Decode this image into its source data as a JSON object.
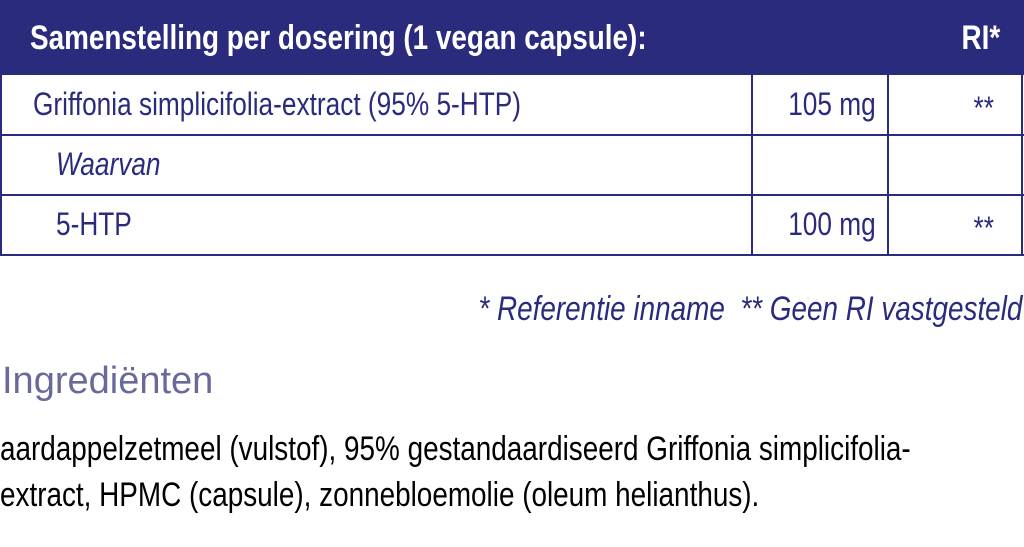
{
  "header": {
    "title": "Samenstelling per dosering (1 vegan capsule):",
    "ri": "RI*"
  },
  "table": {
    "rows": [
      [
        "Griffonia simplicifolia-extract (95% 5-HTP)",
        "105 mg",
        "**"
      ],
      [
        "Waarvan"
      ],
      [
        "5-HTP",
        "100 mg",
        "**"
      ]
    ]
  },
  "footnotes": [
    "* Referentie inname",
    "** Geen RI vastgesteld"
  ],
  "ingredients": {
    "title": "Ingrediënten",
    "lines": [
      "aardappelzetmeel (vulstof), 95% gestandaardiseerd Griffonia simplicifolia-",
      "extract, HPMC (capsule), zonnebloemolie (oleum helianthus)."
    ]
  }
}
